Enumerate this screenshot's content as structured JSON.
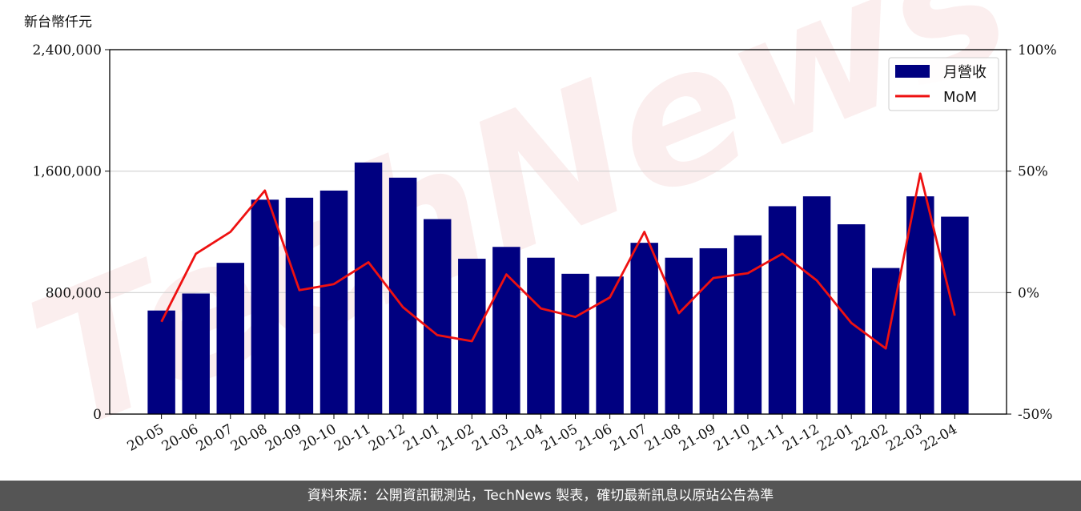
{
  "footer": {
    "source_text": "資料來源：公開資訊觀測站，TechNews 製表，確切最新訊息以原站公告為準"
  },
  "watermark": {
    "text": "TechNews"
  },
  "chart_data": {
    "type": "bar",
    "unit_label": "新台幣仟元",
    "categories": [
      "20-05",
      "20-06",
      "20-07",
      "20-08",
      "20-09",
      "20-10",
      "20-11",
      "20-12",
      "21-01",
      "21-02",
      "21-03",
      "21-04",
      "21-05",
      "21-06",
      "21-07",
      "21-08",
      "21-09",
      "21-10",
      "21-11",
      "21-12",
      "22-01",
      "22-02",
      "22-03",
      "22-04"
    ],
    "series": [
      {
        "name": "月營收",
        "type": "bar",
        "axis": "left",
        "color": "#000080",
        "values": [
          682000,
          794000,
          996000,
          1412000,
          1425000,
          1472000,
          1657000,
          1557000,
          1284000,
          1023000,
          1101000,
          1030000,
          924000,
          906000,
          1128000,
          1030000,
          1092000,
          1177000,
          1369000,
          1434000,
          1250000,
          962000,
          1434000,
          1300000
        ]
      },
      {
        "name": "MoM",
        "type": "line",
        "axis": "right",
        "color": "#ee1111",
        "values": [
          -12,
          16,
          25,
          42,
          1,
          3.5,
          12.5,
          -6,
          -17.5,
          -20,
          7.5,
          -6.5,
          -10,
          -2,
          25,
          -8.5,
          6,
          8,
          16,
          5,
          -12.5,
          -23,
          49,
          -9.5
        ]
      }
    ],
    "y_left": {
      "min": 0,
      "max": 2400000,
      "ticks": [
        0,
        800000,
        1600000,
        2400000
      ],
      "tick_labels": [
        "0",
        "800,000",
        "1,600,000",
        "2,400,000"
      ]
    },
    "y_right": {
      "min": -50,
      "max": 100,
      "ticks": [
        -50,
        0,
        50,
        100
      ],
      "tick_labels": [
        "-50%",
        "0%",
        "50%",
        "100%"
      ]
    },
    "grid": "horizontal",
    "legend_position": "top-right"
  }
}
